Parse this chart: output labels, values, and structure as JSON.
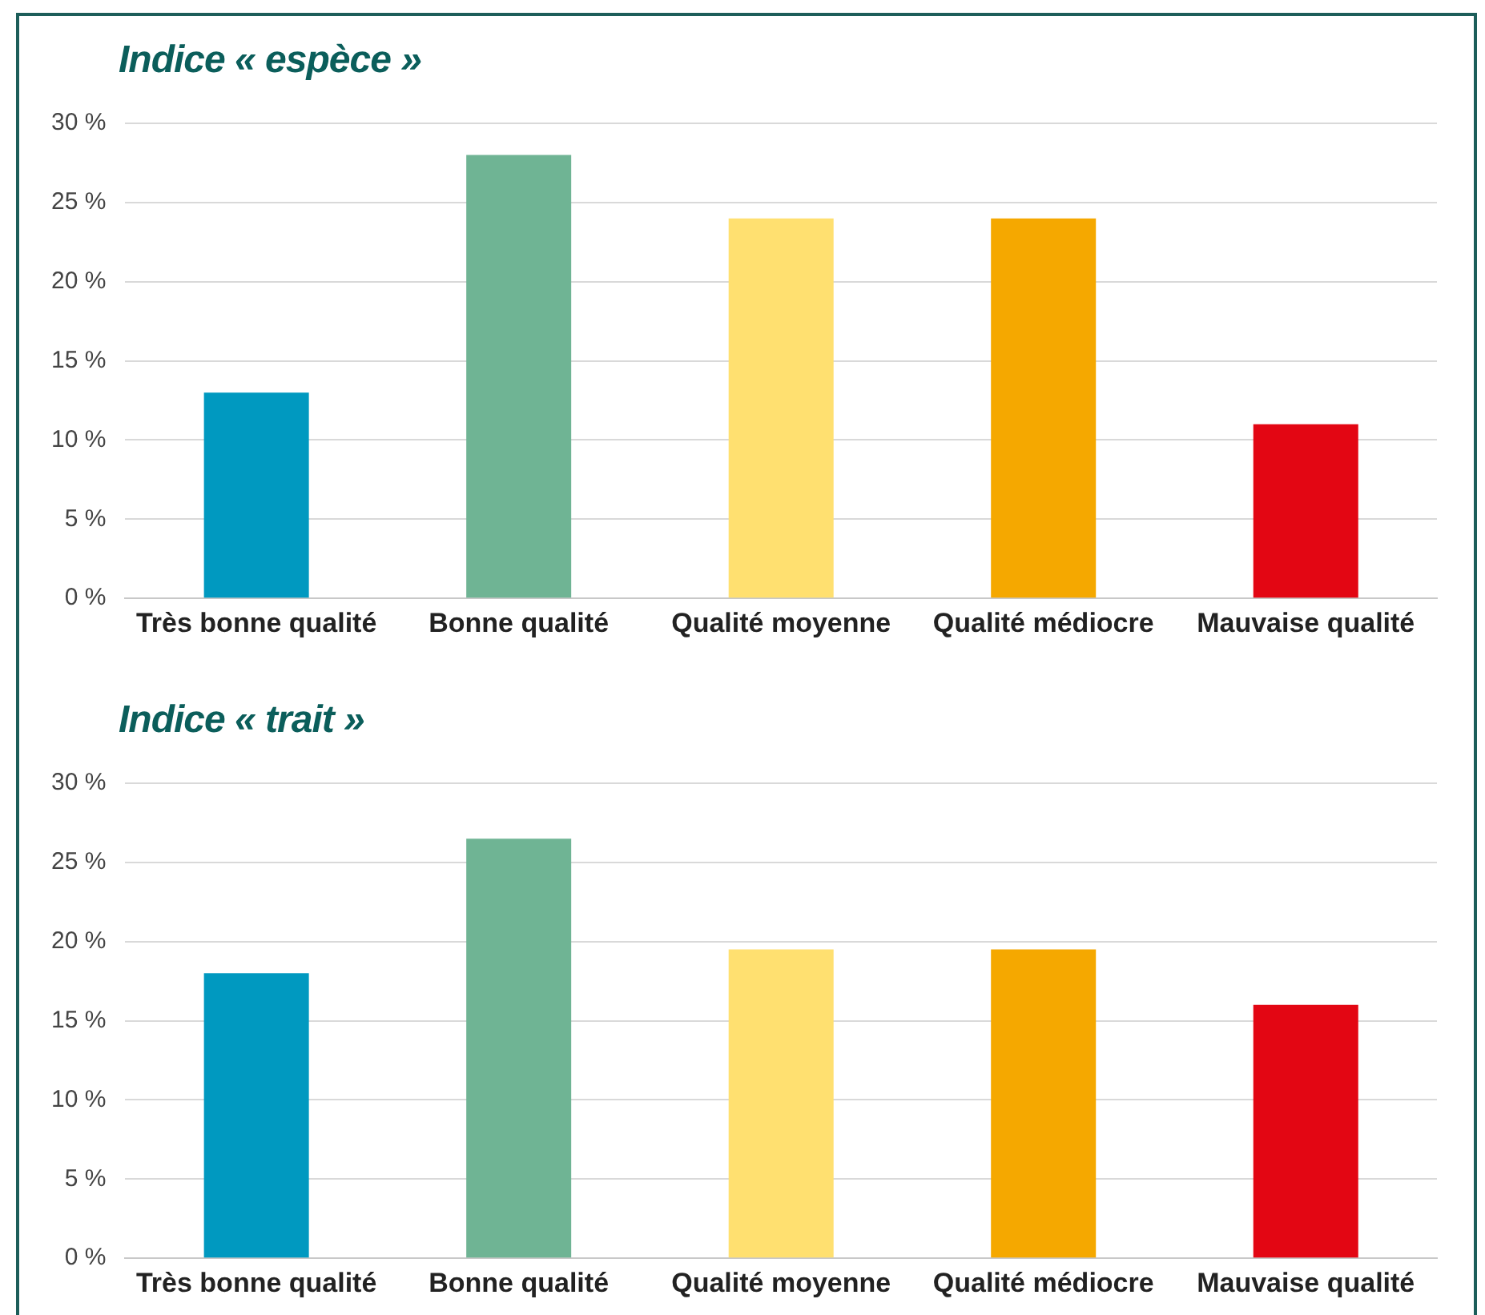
{
  "chart_data": [
    {
      "type": "bar",
      "title": "Indice « espèce »",
      "categories": [
        "Très bonne qualité",
        "Bonne qualité",
        "Qualité moyenne",
        "Qualité médiocre",
        "Mauvaise qualité"
      ],
      "values": [
        13,
        28,
        24,
        24,
        11
      ],
      "colors": [
        "#0099c0",
        "#6fb494",
        "#ffe070",
        "#f5a800",
        "#e30613"
      ],
      "ylim": [
        0,
        30
      ],
      "yticks": [
        {
          "value": 0,
          "label": "0 %"
        },
        {
          "value": 5,
          "label": "5 %"
        },
        {
          "value": 10,
          "label": "10 %"
        },
        {
          "value": 15,
          "label": "15 %"
        },
        {
          "value": 20,
          "label": "20 %"
        },
        {
          "value": 25,
          "label": "25 %"
        },
        {
          "value": 30,
          "label": "30 %"
        }
      ],
      "grid": "y",
      "legend": false
    },
    {
      "type": "bar",
      "title": "Indice « trait »",
      "categories": [
        "Très bonne qualité",
        "Bonne qualité",
        "Qualité moyenne",
        "Qualité médiocre",
        "Mauvaise qualité"
      ],
      "values": [
        18,
        26.5,
        19.5,
        19.5,
        16
      ],
      "colors": [
        "#0099c0",
        "#6fb494",
        "#ffe070",
        "#f5a800",
        "#e30613"
      ],
      "ylim": [
        0,
        30
      ],
      "yticks": [
        {
          "value": 0,
          "label": "0 %"
        },
        {
          "value": 5,
          "label": "5 %"
        },
        {
          "value": 10,
          "label": "10 %"
        },
        {
          "value": 15,
          "label": "15 %"
        },
        {
          "value": 20,
          "label": "20 %"
        },
        {
          "value": 25,
          "label": "25 %"
        },
        {
          "value": 30,
          "label": "30 %"
        }
      ],
      "grid": "y",
      "legend": false
    }
  ]
}
